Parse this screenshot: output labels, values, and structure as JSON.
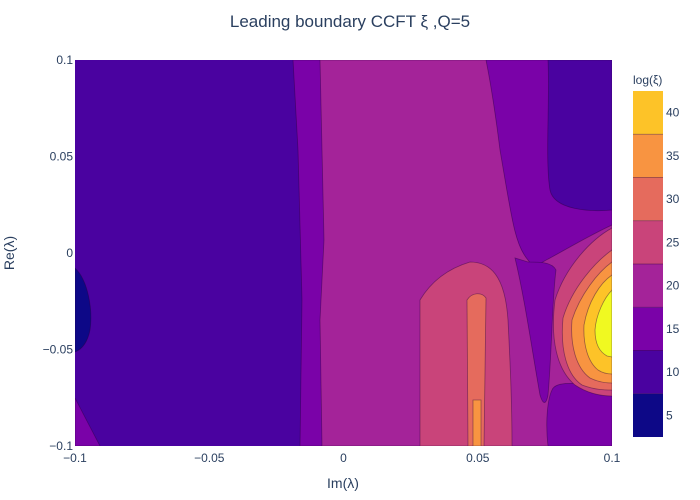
{
  "chart_data": {
    "type": "contour",
    "title": "Leading boundary CCFT ξ ,Q=5",
    "xlabel": "Im(λ)",
    "ylabel": "Re(λ)",
    "xlim": [
      -0.1,
      0.1
    ],
    "ylim": [
      -0.1,
      0.1
    ],
    "x_ticks": [
      {
        "value": -0.1,
        "label": "−0.1"
      },
      {
        "value": -0.05,
        "label": "−0.05"
      },
      {
        "value": 0,
        "label": "0"
      },
      {
        "value": 0.05,
        "label": "0.05"
      },
      {
        "value": 0.1,
        "label": "0.1"
      }
    ],
    "y_ticks": [
      {
        "value": -0.1,
        "label": "−0.1"
      },
      {
        "value": -0.05,
        "label": "−0.05"
      },
      {
        "value": 0,
        "label": "0"
      },
      {
        "value": 0.05,
        "label": "0.05"
      },
      {
        "value": 0.1,
        "label": "0.1"
      }
    ],
    "colorbar": {
      "title": "log(ξ)",
      "range": [
        2.5,
        42.5
      ],
      "ticks": [
        {
          "value": 5,
          "label": "5"
        },
        {
          "value": 10,
          "label": "10"
        },
        {
          "value": 15,
          "label": "15"
        },
        {
          "value": 20,
          "label": "20"
        },
        {
          "value": 25,
          "label": "25"
        },
        {
          "value": 30,
          "label": "30"
        },
        {
          "value": 35,
          "label": "35"
        },
        {
          "value": 40,
          "label": "40"
        }
      ]
    },
    "levels": [
      {
        "from": 2.5,
        "to": 7.5,
        "color": "#0d0887"
      },
      {
        "from": 7.5,
        "to": 12.5,
        "color": "#4a02a0"
      },
      {
        "from": 12.5,
        "to": 17.5,
        "color": "#7a02a8"
      },
      {
        "from": 17.5,
        "to": 22.5,
        "color": "#a42399"
      },
      {
        "from": 22.5,
        "to": 27.5,
        "color": "#c9447a"
      },
      {
        "from": 27.5,
        "to": 32.5,
        "color": "#e56b5d"
      },
      {
        "from": 32.5,
        "to": 37.5,
        "color": "#f89441"
      },
      {
        "from": 37.5,
        "to": 42.5,
        "color": "#fdc328"
      },
      {
        "from": 42.5,
        "to": 45,
        "color": "#f0f921"
      }
    ]
  }
}
